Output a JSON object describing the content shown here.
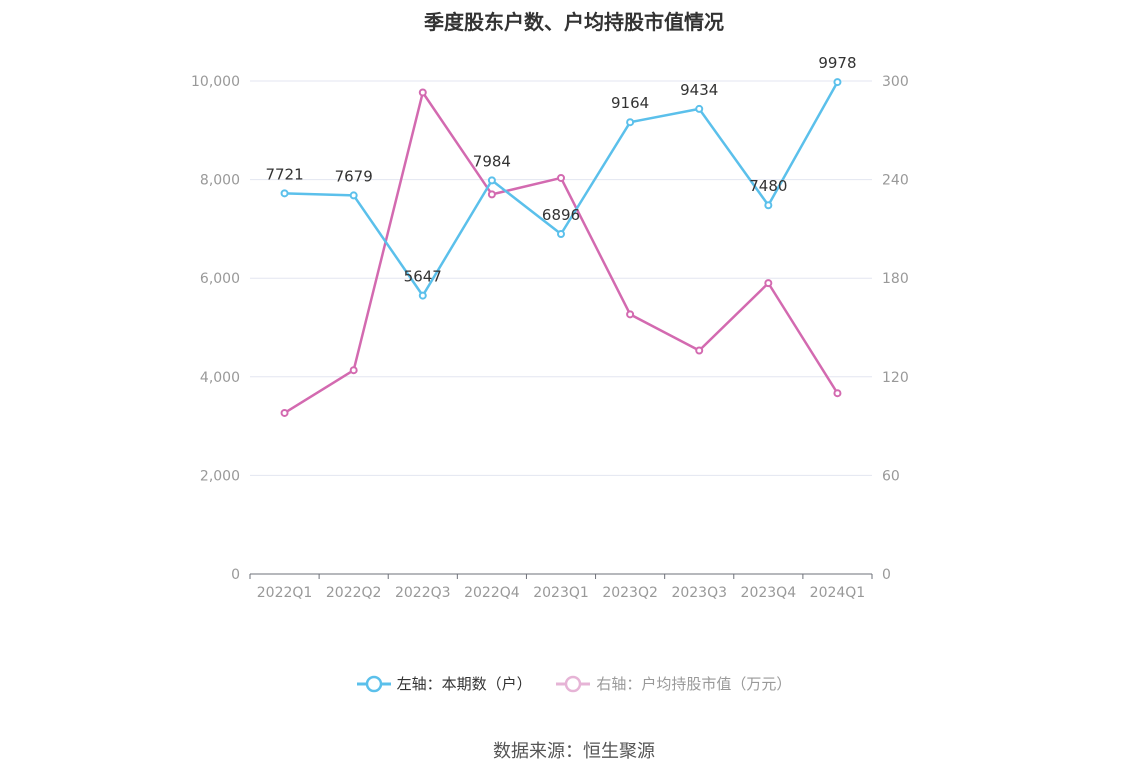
{
  "chart_data": {
    "type": "line",
    "title": "季度股东户数、户均持股市值情况",
    "categories": [
      "2022Q1",
      "2022Q2",
      "2022Q3",
      "2022Q4",
      "2023Q1",
      "2023Q2",
      "2023Q3",
      "2023Q4",
      "2024Q1"
    ],
    "series": [
      {
        "name": "左轴：本期数（户）",
        "axis": "left",
        "color": "#5bc0eb",
        "values": [
          7721,
          7679,
          5647,
          7984,
          6896,
          9164,
          9434,
          7480,
          9978
        ],
        "labels_shown": true
      },
      {
        "name": "右轴：户均持股市值（万元）",
        "axis": "right",
        "color": "#d36ab0",
        "values": [
          98,
          124,
          293,
          231,
          241,
          158,
          136,
          177,
          110
        ],
        "labels_shown": false
      }
    ],
    "left_axis": {
      "min": 0,
      "max": 10000,
      "ticks": [
        "0",
        "2,000",
        "4,000",
        "6,000",
        "8,000",
        "10,000"
      ]
    },
    "right_axis": {
      "min": 0,
      "max": 300,
      "ticks": [
        "0",
        "60",
        "120",
        "180",
        "240",
        "300"
      ]
    },
    "grid": true,
    "legend_position": "bottom"
  },
  "source": "数据来源：恒生聚源"
}
